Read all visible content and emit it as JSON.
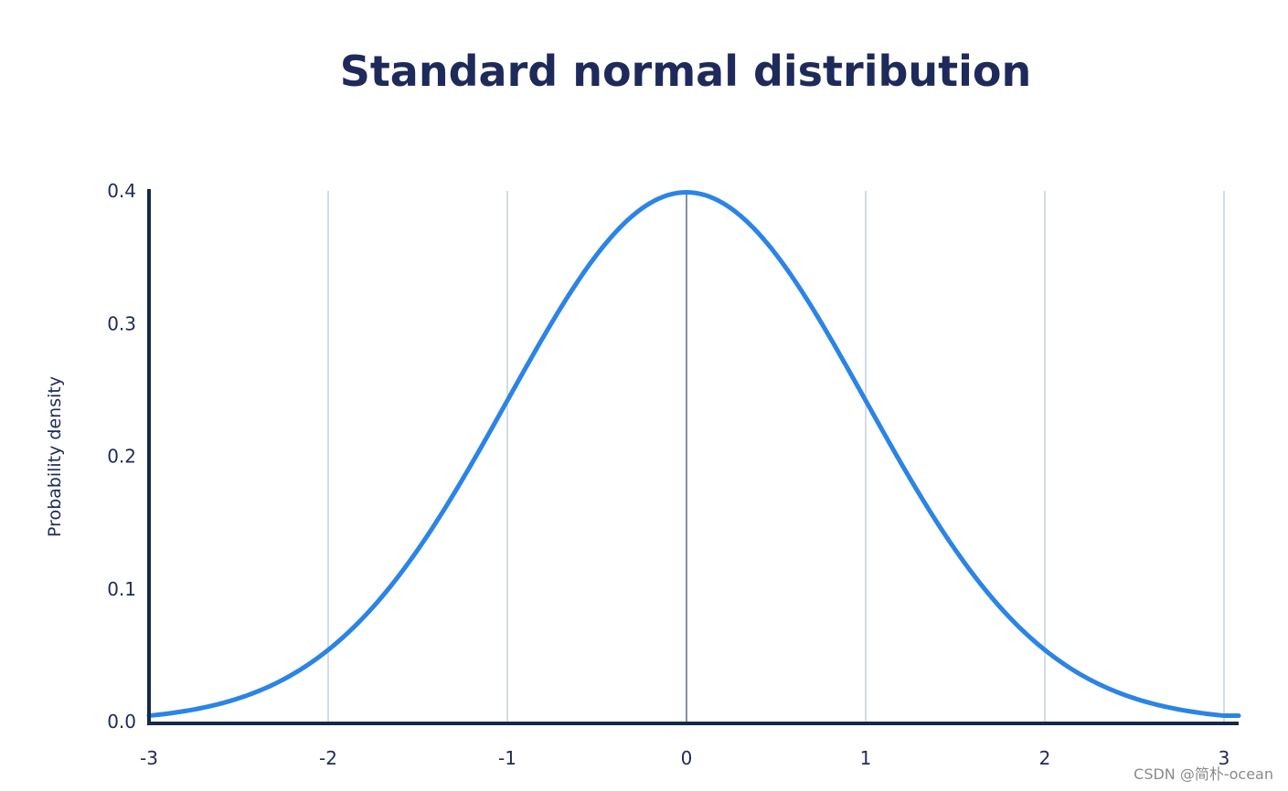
{
  "chart_data": {
    "type": "line",
    "title": "Standard normal distribution",
    "xlabel": "",
    "ylabel": "Probability density",
    "xlim": [
      -3,
      3
    ],
    "ylim": [
      0,
      0.4
    ],
    "x_ticks": [
      -3,
      -2,
      -1,
      0,
      1,
      2,
      3
    ],
    "x_tick_labels": [
      "-3",
      "-2",
      "-1",
      "0",
      "1",
      "2",
      "3"
    ],
    "y_ticks": [
      0,
      0.1,
      0.2,
      0.3,
      0.4
    ],
    "y_tick_labels": [
      "0.0",
      "0.1",
      "0.2",
      "0.3",
      "0.4"
    ],
    "grid": "vertical",
    "series": [
      {
        "x": [
          -3.0,
          -2.75,
          -2.5,
          -2.25,
          -2.0,
          -1.75,
          -1.5,
          -1.25,
          -1.0,
          -0.75,
          -0.5,
          -0.25,
          0.0,
          0.25,
          0.5,
          0.75,
          1.0,
          1.25,
          1.5,
          1.75,
          2.0,
          2.25,
          2.5,
          2.75,
          3.0
        ],
        "y": [
          0.0044,
          0.0091,
          0.0175,
          0.0317,
          0.054,
          0.0863,
          0.1295,
          0.1826,
          0.242,
          0.3011,
          0.3521,
          0.3867,
          0.3989,
          0.3867,
          0.3521,
          0.3011,
          0.242,
          0.1826,
          0.1295,
          0.0863,
          0.054,
          0.0317,
          0.0175,
          0.0091,
          0.0044
        ],
        "color": "#2b84e6"
      }
    ],
    "colors": {
      "title": "#1e2a5a",
      "axis": "#16294a",
      "grid": "#d5dce4",
      "mean_line": "#8590a8",
      "curve": "#2b84e6"
    }
  },
  "watermark": "CSDN @简朴-ocean"
}
